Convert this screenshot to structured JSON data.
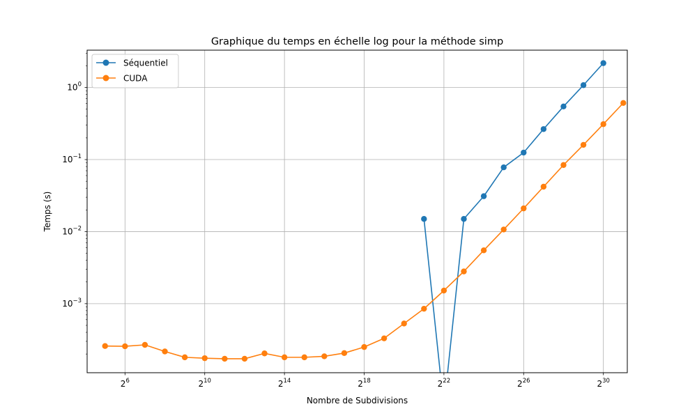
{
  "chart_data": {
    "type": "line",
    "title": "Graphique du temps en échelle log pour la méthode simp",
    "xlabel": "Nombre de Subdivisions",
    "ylabel": "Temps (s)",
    "x_scale": "log2",
    "y_scale": "log10",
    "xlim": [
      4.1,
      31.2
    ],
    "ylim": [
      0.00011,
      3.3
    ],
    "x_ticks": [
      {
        "value": 6,
        "base": "2",
        "exp": "6"
      },
      {
        "value": 10,
        "base": "2",
        "exp": "10"
      },
      {
        "value": 14,
        "base": "2",
        "exp": "14"
      },
      {
        "value": 18,
        "base": "2",
        "exp": "18"
      },
      {
        "value": 22,
        "base": "2",
        "exp": "22"
      },
      {
        "value": 26,
        "base": "2",
        "exp": "26"
      },
      {
        "value": 30,
        "base": "2",
        "exp": "30"
      }
    ],
    "y_ticks": [
      {
        "value": 0.001,
        "base": "10",
        "exp": "−3"
      },
      {
        "value": 0.01,
        "base": "10",
        "exp": "−2"
      },
      {
        "value": 0.1,
        "base": "10",
        "exp": "−1"
      },
      {
        "value": 1,
        "base": "10",
        "exp": "0"
      }
    ],
    "grid": true,
    "legend_position": "top-left",
    "series": [
      {
        "name": "Séquentiel",
        "color": "#1f77b4",
        "points": [
          {
            "x": 21,
            "y": 0.015
          },
          {
            "x": 22,
            "y": 0
          },
          {
            "x": 23,
            "y": 0.015
          },
          {
            "x": 24,
            "y": 0.031
          },
          {
            "x": 25,
            "y": 0.078
          },
          {
            "x": 26,
            "y": 0.125
          },
          {
            "x": 27,
            "y": 0.265
          },
          {
            "x": 28,
            "y": 0.546
          },
          {
            "x": 29,
            "y": 1.078
          },
          {
            "x": 30,
            "y": 2.18
          }
        ]
      },
      {
        "name": "CUDA",
        "color": "#ff7f0e",
        "points": [
          {
            "x": 5,
            "y": 0.000258
          },
          {
            "x": 6,
            "y": 0.000256
          },
          {
            "x": 7,
            "y": 0.000268
          },
          {
            "x": 8,
            "y": 0.000217
          },
          {
            "x": 9,
            "y": 0.00018
          },
          {
            "x": 10,
            "y": 0.000175
          },
          {
            "x": 11,
            "y": 0.000172
          },
          {
            "x": 12,
            "y": 0.000172
          },
          {
            "x": 13,
            "y": 0.000204
          },
          {
            "x": 14,
            "y": 0.00018
          },
          {
            "x": 15,
            "y": 0.00018
          },
          {
            "x": 16,
            "y": 0.000186
          },
          {
            "x": 17,
            "y": 0.000206
          },
          {
            "x": 18,
            "y": 0.00025
          },
          {
            "x": 19,
            "y": 0.00033
          },
          {
            "x": 20,
            "y": 0.00053
          },
          {
            "x": 21,
            "y": 0.00085
          },
          {
            "x": 22,
            "y": 0.00152
          },
          {
            "x": 23,
            "y": 0.0028
          },
          {
            "x": 24,
            "y": 0.0055
          },
          {
            "x": 25,
            "y": 0.0107
          },
          {
            "x": 26,
            "y": 0.021
          },
          {
            "x": 27,
            "y": 0.042
          },
          {
            "x": 28,
            "y": 0.084
          },
          {
            "x": 29,
            "y": 0.16
          },
          {
            "x": 30,
            "y": 0.31
          },
          {
            "x": 31,
            "y": 0.61
          }
        ]
      }
    ]
  }
}
